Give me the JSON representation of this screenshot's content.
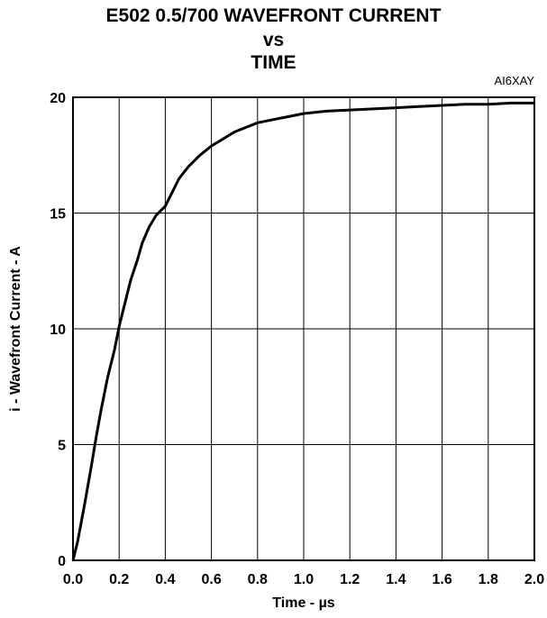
{
  "chart_data": {
    "type": "line",
    "title": [
      "E502 0.5/700 WAVEFRONT CURRENT",
      "vs",
      "TIME"
    ],
    "code": "AI6XAY",
    "xlabel": "Time - µs",
    "ylabel": "i - Wavefront Current - A",
    "xlim": [
      0,
      2.0
    ],
    "ylim": [
      0,
      20
    ],
    "x_ticks": [
      "0.0",
      "0.2",
      "0.4",
      "0.6",
      "0.8",
      "1.0",
      "1.2",
      "1.4",
      "1.6",
      "1.8",
      "2.0"
    ],
    "y_ticks": [
      "0",
      "5",
      "10",
      "15",
      "20"
    ],
    "grid": true,
    "series": [
      {
        "x": [
          0.0,
          0.02,
          0.05,
          0.08,
          0.1,
          0.12,
          0.15,
          0.18,
          0.2,
          0.22,
          0.25,
          0.28,
          0.3,
          0.33,
          0.36,
          0.4,
          0.43,
          0.46,
          0.5,
          0.55,
          0.6,
          0.65,
          0.7,
          0.75,
          0.8,
          0.85,
          0.9,
          0.95,
          1.0,
          1.1,
          1.2,
          1.3,
          1.4,
          1.5,
          1.6,
          1.7,
          1.8,
          1.9,
          2.0
        ],
        "y": [
          0.0,
          0.8,
          2.4,
          4.1,
          5.3,
          6.4,
          7.9,
          9.1,
          10.1,
          10.9,
          12.1,
          13.0,
          13.7,
          14.4,
          14.9,
          15.3,
          15.9,
          16.5,
          17.0,
          17.5,
          17.9,
          18.2,
          18.5,
          18.7,
          18.9,
          19.0,
          19.1,
          19.2,
          19.3,
          19.4,
          19.45,
          19.5,
          19.55,
          19.6,
          19.65,
          19.7,
          19.7,
          19.75,
          19.75
        ]
      }
    ]
  }
}
